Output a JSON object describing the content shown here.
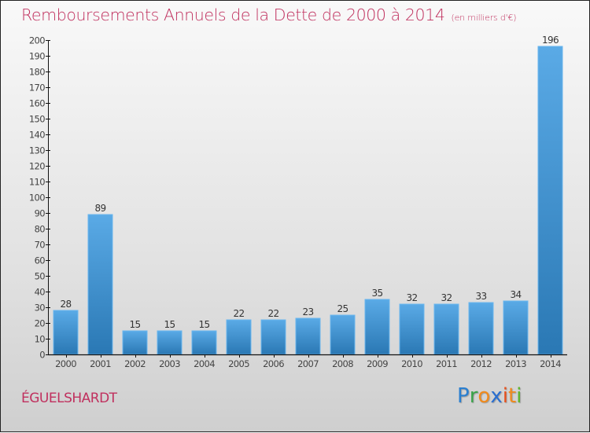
{
  "title": "Remboursements Annuels de la Dette de 2000 à 2014",
  "subtitle": "(en milliers d'€)",
  "commune": "ÉGUELSHARDT",
  "logo": {
    "letters": [
      {
        "ch": "P",
        "color": "#2a7fd0"
      },
      {
        "ch": "r",
        "color": "#3aa34a"
      },
      {
        "ch": "o",
        "color": "#f08a1c"
      },
      {
        "ch": "x",
        "color": "#2a6fd0"
      },
      {
        "ch": "i",
        "color": "#e8501c"
      },
      {
        "ch": "t",
        "color": "#f08a1c"
      },
      {
        "ch": "i",
        "color": "#5ab52a"
      }
    ]
  },
  "colors": {
    "title": "#c0305e",
    "bar_top": "#5aaae6",
    "bar_bottom": "#2a78b4",
    "bar_edge": "#6ab6ee",
    "axis": "#111111",
    "tick_label": "#444444"
  },
  "chart_data": {
    "type": "bar",
    "title": "Remboursements Annuels de la Dette de 2000 à 2014",
    "subtitle": "(en milliers d'€)",
    "xlabel": "",
    "ylabel": "",
    "categories": [
      "2000",
      "2001",
      "2002",
      "2003",
      "2004",
      "2005",
      "2006",
      "2007",
      "2008",
      "2009",
      "2010",
      "2011",
      "2012",
      "2013",
      "2014"
    ],
    "values": [
      28,
      89,
      15,
      15,
      15,
      22,
      22,
      23,
      25,
      35,
      32,
      32,
      33,
      34,
      196
    ],
    "ylim": [
      0,
      200
    ],
    "yticks": [
      0,
      10,
      20,
      30,
      40,
      50,
      60,
      70,
      80,
      90,
      100,
      110,
      120,
      130,
      140,
      150,
      160,
      170,
      180,
      190,
      200
    ],
    "grid": false,
    "legend": "none",
    "data_labels": true
  }
}
